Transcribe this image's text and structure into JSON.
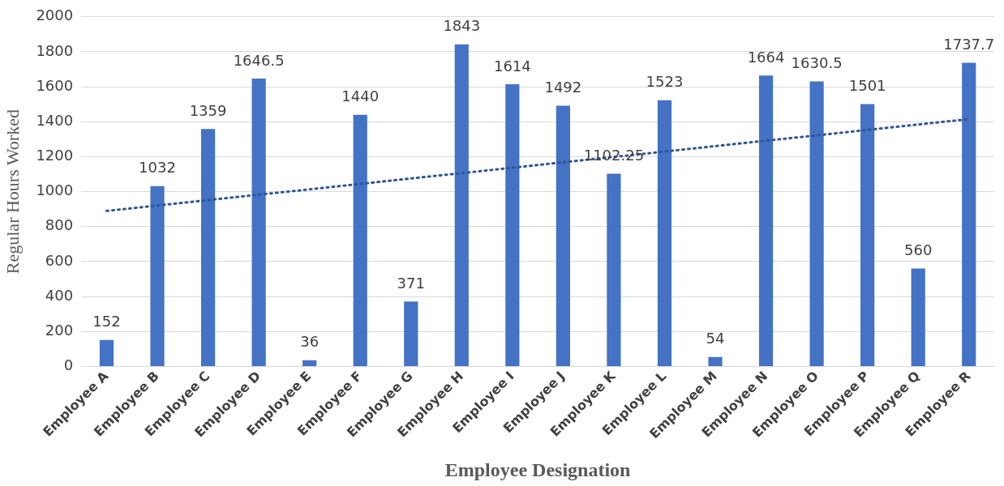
{
  "chart_data": {
    "type": "bar",
    "xlabel": "Employee Designation",
    "ylabel": "Regular Hours Worked",
    "categories": [
      "Employee A",
      "Employee B",
      "Employee C",
      "Employee D",
      "Employee E",
      "Employee F",
      "Employee G",
      "Employee H",
      "Employee I",
      "Employee J",
      "Employee K",
      "Employee L",
      "Employee M",
      "Employee N",
      "Employee O",
      "Employee P",
      "Employee Q",
      "Employee R"
    ],
    "series": [
      {
        "color": "#4472c4",
        "values": [
          152,
          1032,
          1359,
          1646.5,
          36,
          1440,
          371,
          1843,
          1614,
          1492,
          1102.25,
          1523,
          54,
          1664,
          1630.5,
          1501,
          560,
          1737.7
        ],
        "value_labels": [
          "152",
          "1032",
          "1359",
          "1646.5",
          "36",
          "1440",
          "371",
          "1843",
          "1614",
          "1492",
          "1102.25",
          "1523",
          "54",
          "1664",
          "1630.5",
          "1501",
          "560",
          "1737.7"
        ]
      },
      {
        "type": "line",
        "color": "#2f5597",
        "line_style": "dotted",
        "marker": "none",
        "x": [
          "Employee A",
          "Employee R"
        ],
        "values": [
          890,
          1415
        ]
      }
    ],
    "ylim": [
      0,
      2000
    ],
    "yticks": [
      0,
      200,
      400,
      600,
      800,
      1000,
      1200,
      1400,
      1600,
      1800,
      2000
    ],
    "grid": "y",
    "legend": false
  }
}
